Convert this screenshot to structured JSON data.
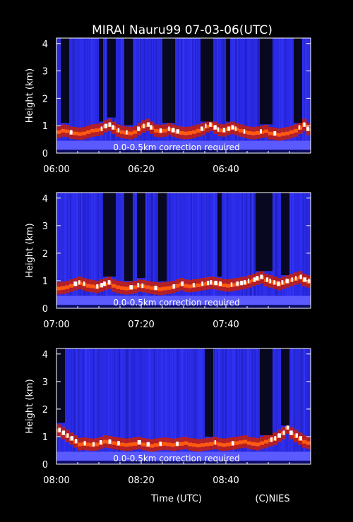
{
  "title": "MIRAI Nauru99 07-03-06(UTC)",
  "xlabel": "Time (UTC)",
  "credit": "(C)NIES",
  "colors": {
    "background": "#000000",
    "axis": "#ffffff",
    "clear_air": "#2a2ae6",
    "near_surface": "#5a5aff",
    "cloud_low": "#c81e0a",
    "cloud_mid": "#ff5a10",
    "cloud_high": "#ffffff",
    "blackout": "#050510"
  },
  "chart_data": [
    {
      "type": "heatmap",
      "ylabel": "Height (km)",
      "y_ticks": [
        "0",
        "1",
        "2",
        "3",
        "4"
      ],
      "ylim": [
        0,
        4.2
      ],
      "xlim_minutes": [
        0,
        60
      ],
      "x_ticks": [
        "06:00",
        "06:20",
        "06:40"
      ],
      "annotation": "0.0-0.5km correction required",
      "cloud_base_km": [
        0.75,
        0.8,
        0.78,
        0.72,
        0.7,
        0.68,
        0.7,
        0.75,
        0.8,
        0.82,
        0.85,
        0.95,
        1.0,
        0.9,
        0.8,
        0.75,
        0.72,
        0.7,
        0.75,
        0.85,
        0.95,
        1.0,
        0.9,
        0.8,
        0.78,
        0.8,
        0.85,
        0.8,
        0.75,
        0.72,
        0.7,
        0.72,
        0.75,
        0.8,
        0.85,
        0.95,
        1.0,
        0.9,
        0.82,
        0.8,
        0.85,
        0.9,
        0.85,
        0.8,
        0.75,
        0.72,
        0.7,
        0.72,
        0.75,
        0.78,
        0.7,
        0.68,
        0.65,
        0.68,
        0.7,
        0.75,
        0.8,
        0.9,
        1.0,
        0.85
      ],
      "dark_minutes": [
        [
          1,
          3
        ],
        [
          10,
          11
        ],
        [
          12,
          14
        ],
        [
          16,
          18
        ],
        [
          25,
          28
        ],
        [
          34,
          37
        ],
        [
          40,
          41
        ],
        [
          48,
          51
        ],
        [
          56,
          58
        ]
      ]
    },
    {
      "type": "heatmap",
      "ylabel": "Height (km)",
      "y_ticks": [
        "0",
        "1",
        "2",
        "3",
        "4"
      ],
      "ylim": [
        0,
        4.2
      ],
      "xlim_minutes": [
        0,
        60
      ],
      "x_ticks": [
        "07:00",
        "07:20",
        "07:40"
      ],
      "annotation": "0.0-0.5km correction required",
      "cloud_base_km": [
        0.7,
        0.72,
        0.75,
        0.8,
        0.85,
        0.9,
        0.85,
        0.8,
        0.78,
        0.75,
        0.8,
        0.85,
        0.9,
        0.8,
        0.75,
        0.72,
        0.7,
        0.72,
        0.75,
        0.8,
        0.78,
        0.75,
        0.72,
        0.7,
        0.68,
        0.7,
        0.72,
        0.75,
        0.8,
        0.85,
        0.8,
        0.78,
        0.8,
        0.82,
        0.85,
        0.88,
        0.9,
        0.88,
        0.85,
        0.82,
        0.8,
        0.82,
        0.85,
        0.88,
        0.9,
        0.95,
        1.0,
        1.05,
        1.1,
        1.0,
        0.95,
        0.9,
        0.85,
        0.9,
        0.95,
        1.0,
        1.05,
        1.1,
        1.0,
        0.95
      ],
      "dark_minutes": [
        [
          11,
          14
        ],
        [
          16,
          18
        ],
        [
          19,
          21
        ],
        [
          24,
          26
        ],
        [
          38,
          39
        ],
        [
          47,
          51
        ],
        [
          53,
          55
        ]
      ]
    },
    {
      "type": "heatmap",
      "ylabel": "Height (km)",
      "y_ticks": [
        "0",
        "1",
        "2",
        "3",
        "4"
      ],
      "ylim": [
        0,
        4.2
      ],
      "xlim_minutes": [
        0,
        60
      ],
      "x_ticks": [
        "08:00",
        "08:20",
        "08:40"
      ],
      "annotation": "0.0-0.5km correction required",
      "cloud_base_km": [
        1.2,
        1.1,
        1.0,
        0.9,
        0.8,
        0.7,
        0.72,
        0.7,
        0.68,
        0.7,
        0.75,
        0.8,
        0.78,
        0.75,
        0.72,
        0.7,
        0.68,
        0.7,
        0.72,
        0.75,
        0.7,
        0.68,
        0.65,
        0.68,
        0.7,
        0.72,
        0.7,
        0.68,
        0.7,
        0.72,
        0.75,
        0.7,
        0.68,
        0.66,
        0.68,
        0.7,
        0.72,
        0.75,
        0.7,
        0.68,
        0.7,
        0.72,
        0.75,
        0.78,
        0.8,
        0.75,
        0.72,
        0.7,
        0.75,
        0.8,
        0.85,
        0.9,
        1.0,
        1.1,
        1.3,
        1.1,
        1.0,
        0.9,
        0.8,
        0.75
      ],
      "dark_minutes": [
        [
          0,
          2
        ],
        [
          35,
          37
        ],
        [
          48,
          51
        ],
        [
          53,
          55
        ]
      ]
    }
  ]
}
